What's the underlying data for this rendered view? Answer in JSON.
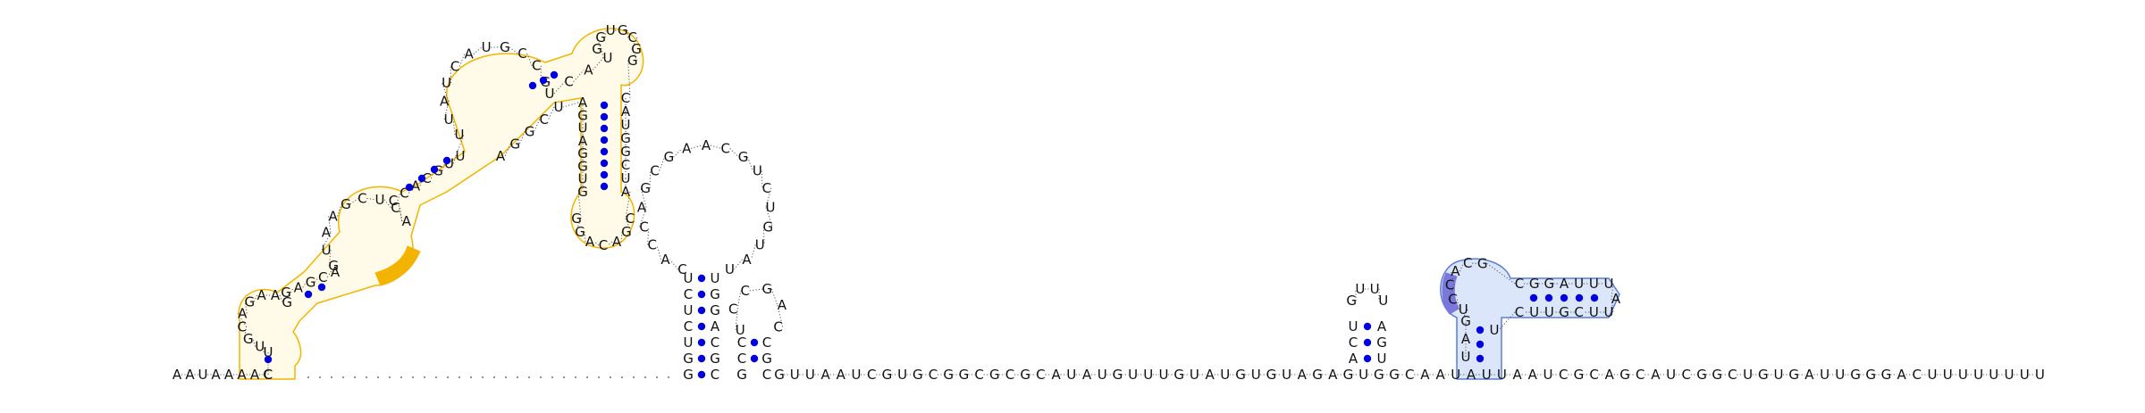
{
  "colors": {
    "pair_dot": "#0000dd",
    "backbone": "#555555",
    "highlight_a_outline": "#f2b400",
    "highlight_a_fill": "#fffbe8",
    "highlight_a_solid": "#f2b400",
    "highlight_b_outline": "#5b7fd6",
    "highlight_b_fill": "#dbe6fb",
    "highlight_b_solid": "#7a78dd"
  },
  "diagram": {
    "baseline": {
      "left": "AAUAAAAC",
      "right": "GUUAAUCGUGCGGCGCGCAUAUGUUUGUAUGUGUAGAGUGGCAAUAUUAAUCGCAGCAUCGGCUGUGAUUGGGACUUUUUUUU"
    },
    "hairpin1": {
      "left_strand": "CUUGCAGAAGGAGCAGUAAGCUCACCACGUUUUAUCAUGCCGUCAUGGUGCGGCAUGGCUACGACAGGGUGGAUGAUCGGAGACUAAC",
      "note": "letters rendered around the yellow-highlighted multi-loop region"
    },
    "hairpin2": {
      "stem_left": "GGUCUCU",
      "stem_right": "CGCAGGU",
      "loop": "CACCAGCGAACGUCUGUAU"
    },
    "hairpin3": {
      "stem_left": "GCC",
      "stem_right": "CGC",
      "loop": "UCCGAC"
    },
    "hairpin4": {
      "stem_left": "ACU",
      "stem_right": "UGA",
      "loop": "GUUU"
    },
    "hairpin5": {
      "letters": "UAGUCCACGCGGAUUUAUUCGUUCU",
      "note": "blue-highlighted hairpin"
    }
  }
}
